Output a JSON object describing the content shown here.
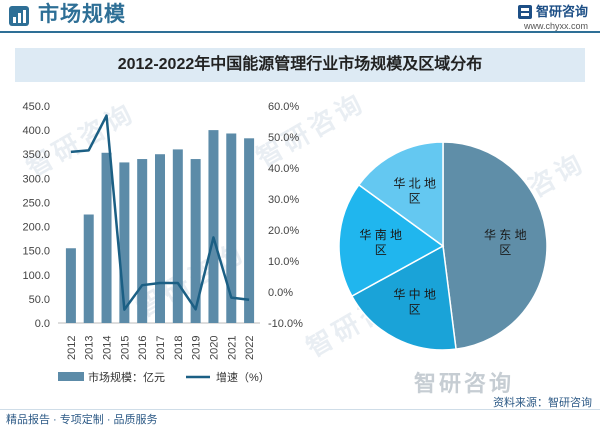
{
  "header": {
    "title": "市场规模",
    "brand_name": "智研咨询",
    "brand_url": "www.chyxx.com"
  },
  "watermark_text": "智研咨询",
  "chart_title": "2012-2022年中国能源管理行业市场规模及区域分布",
  "chart_data": [
    {
      "type": "bar",
      "combo": "bar+line",
      "categories": [
        "2012",
        "2013",
        "2014",
        "2015",
        "2016",
        "2017",
        "2018",
        "2019",
        "2020",
        "2021",
        "2022"
      ],
      "series": [
        {
          "name": "市场规模：亿元",
          "type": "bar",
          "axis": "left",
          "color": "#5c8ba8",
          "values": [
            155,
            225,
            353,
            333,
            340,
            350,
            360,
            340,
            400,
            393,
            383
          ]
        },
        {
          "name": "增速（%）",
          "type": "line",
          "axis": "right",
          "color": "#1b5f84",
          "values": [
            45.2,
            45.7,
            56.9,
            -5.7,
            2.2,
            2.9,
            2.9,
            -5.6,
            17.6,
            -1.8,
            -2.5
          ]
        }
      ],
      "ylim_left": [
        0,
        450
      ],
      "yticks_left": [
        "0.0",
        "50.0",
        "100.0",
        "150.0",
        "200.0",
        "250.0",
        "300.0",
        "350.0",
        "400.0",
        "450.0"
      ],
      "ylim_right": [
        -10,
        60
      ],
      "yticks_right": [
        "-10.0%",
        "0.0%",
        "10.0%",
        "20.0%",
        "30.0%",
        "40.0%",
        "50.0%",
        "60.0%"
      ],
      "grid": false,
      "legend_position": "bottom"
    },
    {
      "type": "pie",
      "labels": [
        "华东地区",
        "华中地区",
        "华南地区",
        "华北地区"
      ],
      "values": [
        48,
        19,
        18,
        15
      ],
      "colors": [
        "#5f8ea8",
        "#1aa3d8",
        "#20b6ee",
        "#64c8f1"
      ]
    }
  ],
  "footer": {
    "left": "精品报告 · 专项定制 · 品质服务",
    "right": "资料来源：智研咨询"
  }
}
